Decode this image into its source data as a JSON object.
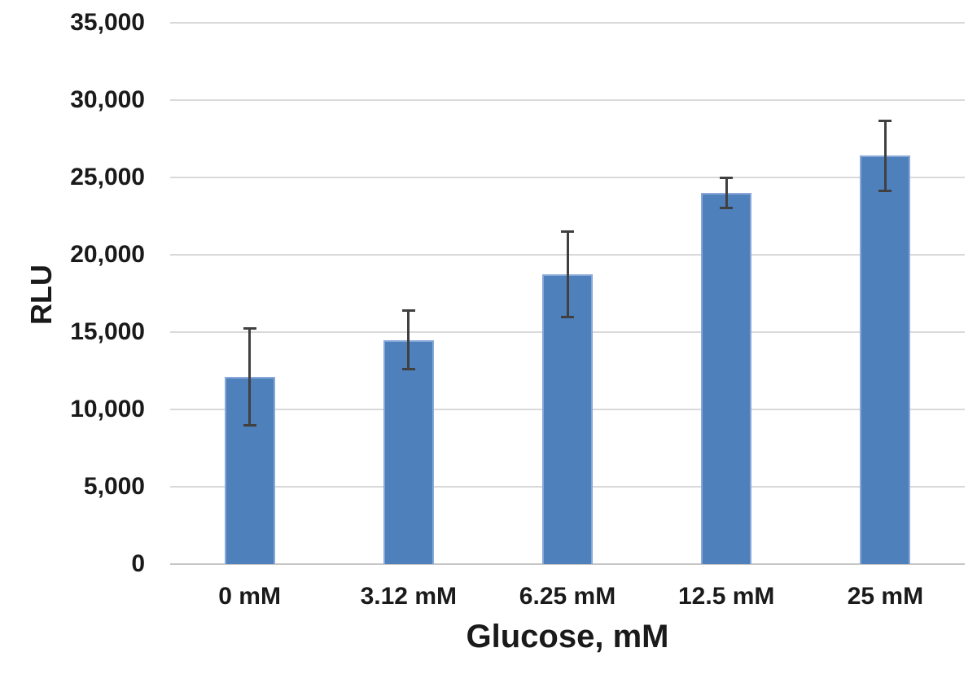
{
  "chart_data": {
    "type": "bar",
    "title": "",
    "xlabel": "Glucose, mM",
    "ylabel": "RLU",
    "categories": [
      "0 mM",
      "3.12 mM",
      "6.25 mM",
      "12.5 mM",
      "25 mM"
    ],
    "values": [
      12100,
      14500,
      18750,
      24000,
      26400
    ],
    "error_bars": [
      3200,
      1950,
      2850,
      1050,
      2350
    ],
    "ylim": [
      0,
      35000
    ],
    "ytick_step": 5000,
    "ytick_labels": [
      "0",
      "5,000",
      "10,000",
      "15,000",
      "20,000",
      "25,000",
      "30,000",
      "35,000"
    ],
    "grid": "horizontal",
    "legend": "none",
    "colors": {
      "bar": "#4e80bc",
      "bar_border": "#87a8d8",
      "gridline": "#d9d9d9",
      "axis_line": "#c6c6c6",
      "error_bar": "#404040",
      "text": "#1a1a1a",
      "background": "#ffffff"
    }
  }
}
